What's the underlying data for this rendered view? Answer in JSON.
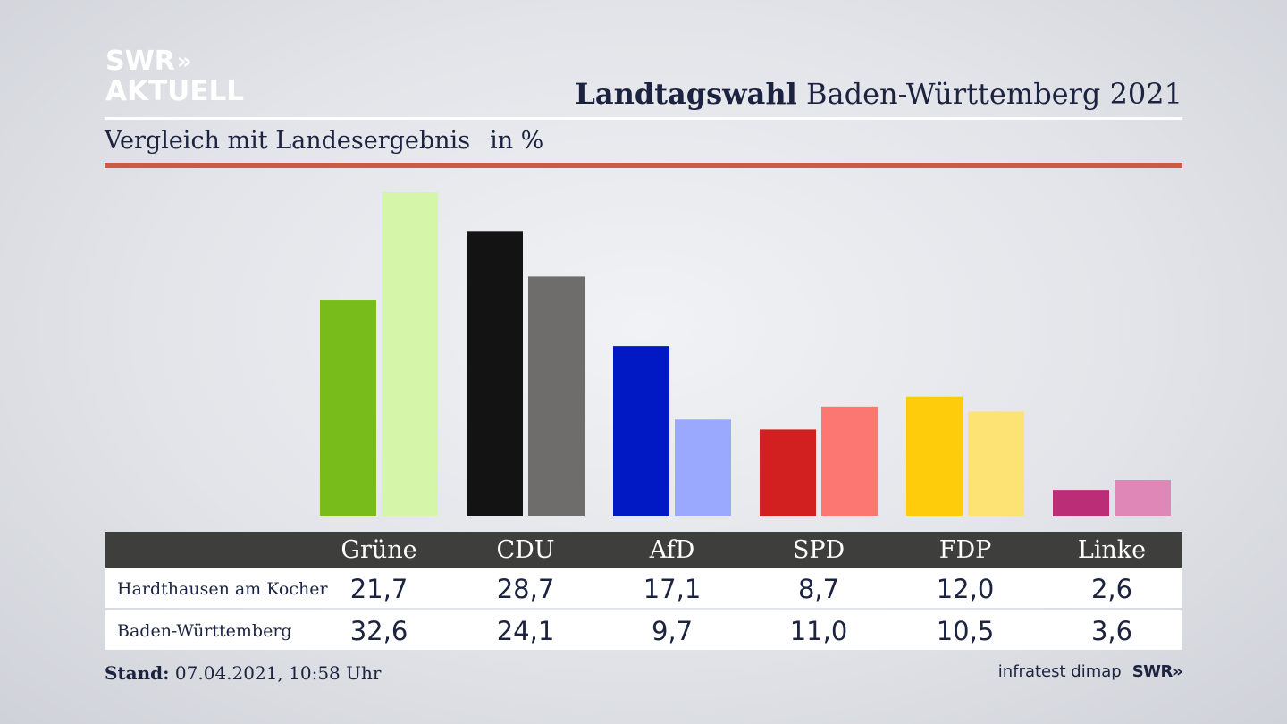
{
  "header": {
    "logo_line1": "SWR",
    "logo_chevrons": "»",
    "logo_line2": "AKTUELL",
    "title_bold": "Landtagswahl",
    "title_rest": " Baden-Württemberg 2021",
    "subtitle": "Vergleich mit Landesergebnis",
    "unit": "in %"
  },
  "chart_data": {
    "type": "bar",
    "categories": [
      "Grüne",
      "CDU",
      "AfD",
      "SPD",
      "FDP",
      "Linke"
    ],
    "series": [
      {
        "name": "Hardthausen am Kocher",
        "values": [
          21.7,
          28.7,
          17.1,
          8.7,
          12.0,
          2.6
        ],
        "colors": [
          "#78bc1b",
          "#131313",
          "#0019c5",
          "#d21f1f",
          "#fecc0b",
          "#bc2d77"
        ]
      },
      {
        "name": "Baden-Württemberg",
        "values": [
          32.6,
          24.1,
          9.7,
          11.0,
          10.5,
          3.6
        ],
        "colors": [
          "#d5f5a8",
          "#6f6d6b",
          "#9aa9fe",
          "#fd7772",
          "#fde274",
          "#df88b7"
        ]
      }
    ],
    "ylim": [
      0,
      32.6
    ],
    "grid": false,
    "legend": "table-below"
  },
  "table": {
    "rows": [
      {
        "label": "Hardthausen am Kocher",
        "values": [
          "21,7",
          "28,7",
          "17,1",
          "8,7",
          "12,0",
          "2,6"
        ]
      },
      {
        "label": "Baden-Württemberg",
        "values": [
          "32,6",
          "24,1",
          "9,7",
          "11,0",
          "10,5",
          "3,6"
        ]
      }
    ]
  },
  "footer": {
    "stand_label": "Stand:",
    "stand_value": " 07.04.2021, 10:58 Uhr",
    "source": "infratest dimap",
    "brand": "SWR»"
  }
}
